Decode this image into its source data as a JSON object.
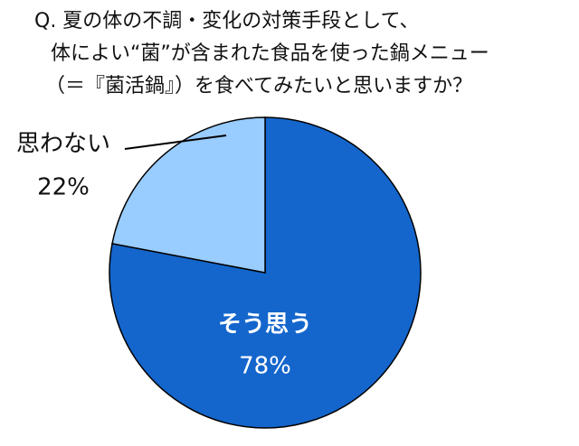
{
  "chart_data": {
    "type": "pie",
    "title": [
      "Q. 夏の体の不調・変化の対策手段として、",
      "体によい“菌”が含まれた食品を使った鍋メニュー",
      "（＝『菌活鍋』）を食べてみたいと思いますか？"
    ],
    "categories": [
      "そう思う",
      "思わない"
    ],
    "values": [
      78,
      22
    ],
    "value_labels": [
      "78%",
      "22%"
    ],
    "colors": [
      "#1466cc",
      "#99ccff"
    ]
  }
}
